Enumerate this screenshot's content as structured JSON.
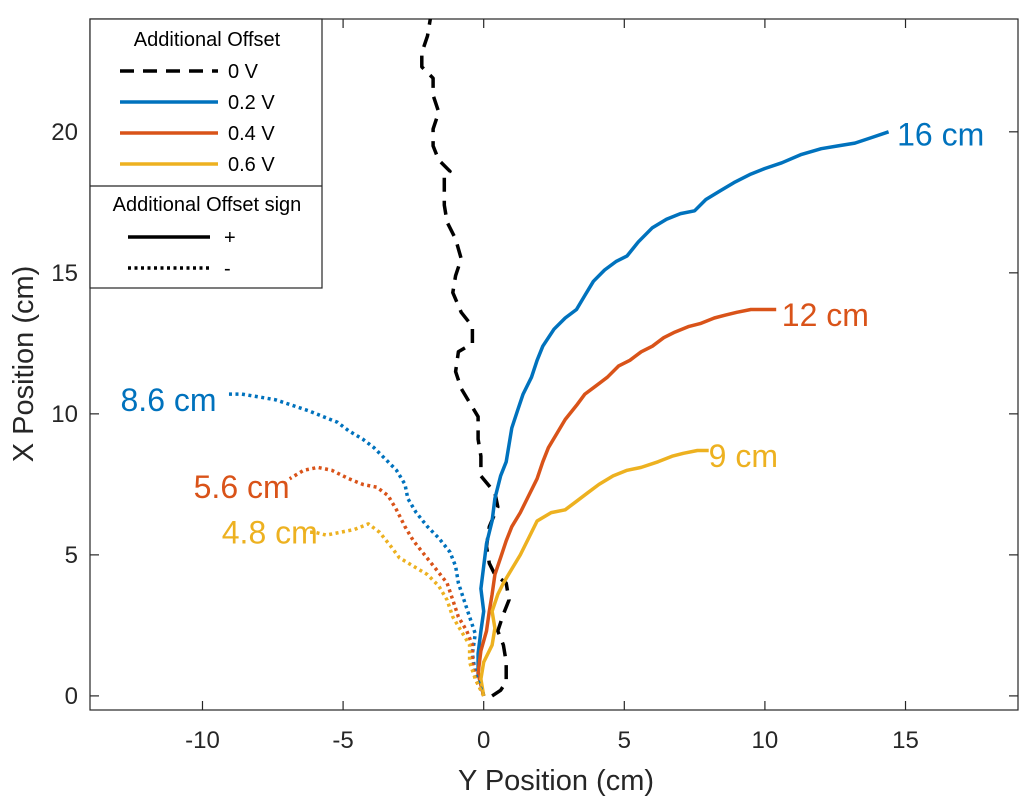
{
  "chart_data": {
    "type": "line",
    "xlabel": "Y Position (cm)",
    "ylabel": "X Position (cm)",
    "xlim": [
      -14,
      19
    ],
    "ylim": [
      -0.5,
      24
    ],
    "xticks": [
      -10,
      -5,
      0,
      5,
      10,
      15
    ],
    "yticks": [
      0,
      5,
      10,
      15,
      20
    ],
    "grid": false,
    "colors": {
      "0 V": "#000000",
      "0.2 V": "#0072BD",
      "0.4 V": "#D95319",
      "0.6 V": "#EDB120"
    },
    "legend": {
      "position": "top-left",
      "title": "Additional Offset",
      "entries": [
        {
          "label": "0 V",
          "color": "#000000",
          "style": "dashed"
        },
        {
          "label": "0.2 V",
          "color": "#0072BD",
          "style": "solid"
        },
        {
          "label": "0.4 V",
          "color": "#D95319",
          "style": "solid"
        },
        {
          "label": "0.6 V",
          "color": "#EDB120",
          "style": "solid"
        }
      ],
      "sign_title": "Additional Offset sign",
      "sign_entries": [
        {
          "label": "+",
          "style": "solid"
        },
        {
          "label": "-",
          "style": "dotted"
        }
      ]
    },
    "annotations": [
      {
        "text": "16 cm",
        "x": 14.7,
        "y": 19.9,
        "color": "#0072BD",
        "align": "start"
      },
      {
        "text": "12 cm",
        "x": 10.6,
        "y": 13.5,
        "color": "#D95319",
        "align": "start"
      },
      {
        "text": "9 cm",
        "x": 8.0,
        "y": 8.5,
        "color": "#EDB120",
        "align": "start"
      },
      {
        "text": "8.6 cm",
        "x": -9.5,
        "y": 10.5,
        "color": "#0072BD",
        "align": "end"
      },
      {
        "text": "5.6 cm",
        "x": -6.9,
        "y": 7.4,
        "color": "#D95319",
        "align": "end"
      },
      {
        "text": "4.8 cm",
        "x": -5.9,
        "y": 5.8,
        "color": "#EDB120",
        "align": "end"
      }
    ],
    "series": [
      {
        "legend": "0 V",
        "sign": "none",
        "style": "dashed",
        "color": "#000000",
        "points": [
          [
            0.3,
            0.0
          ],
          [
            0.6,
            0.2
          ],
          [
            0.8,
            0.5
          ],
          [
            0.8,
            1.2
          ],
          [
            0.7,
            1.8
          ],
          [
            0.5,
            2.3
          ],
          [
            0.7,
            2.9
          ],
          [
            0.9,
            3.4
          ],
          [
            0.8,
            4.0
          ],
          [
            0.4,
            4.3
          ],
          [
            0.2,
            4.7
          ],
          [
            0.1,
            5.3
          ],
          [
            0.2,
            6.0
          ],
          [
            0.5,
            6.7
          ],
          [
            0.4,
            7.2
          ],
          [
            -0.1,
            7.8
          ],
          [
            -0.1,
            8.5
          ],
          [
            -0.2,
            9.1
          ],
          [
            -0.2,
            9.9
          ],
          [
            -0.5,
            10.4
          ],
          [
            -0.8,
            10.9
          ],
          [
            -1.0,
            11.5
          ],
          [
            -0.9,
            12.2
          ],
          [
            -0.4,
            12.5
          ],
          [
            -0.4,
            13.1
          ],
          [
            -0.8,
            13.6
          ],
          [
            -1.1,
            14.3
          ],
          [
            -1.0,
            14.9
          ],
          [
            -0.8,
            15.5
          ],
          [
            -1.0,
            16.2
          ],
          [
            -1.3,
            16.8
          ],
          [
            -1.4,
            17.4
          ],
          [
            -1.4,
            18.0
          ],
          [
            -1.4,
            18.5
          ],
          [
            -1.2,
            18.6
          ],
          [
            -1.6,
            19.0
          ],
          [
            -1.8,
            19.5
          ],
          [
            -1.8,
            20.1
          ],
          [
            -1.6,
            20.7
          ],
          [
            -1.8,
            21.3
          ],
          [
            -1.8,
            21.9
          ],
          [
            -2.2,
            22.3
          ],
          [
            -2.2,
            22.8
          ],
          [
            -2.0,
            23.4
          ],
          [
            -1.9,
            24.0
          ]
        ]
      },
      {
        "legend": "0.2 V",
        "sign": "+",
        "style": "solid",
        "color": "#0072BD",
        "points": [
          [
            0.0,
            0.0
          ],
          [
            -0.2,
            0.8
          ],
          [
            -0.2,
            1.5
          ],
          [
            -0.1,
            2.3
          ],
          [
            0.0,
            3.0
          ],
          [
            -0.1,
            3.8
          ],
          [
            0.0,
            4.6
          ],
          [
            0.1,
            5.4
          ],
          [
            0.3,
            6.2
          ],
          [
            0.4,
            7.0
          ],
          [
            0.6,
            7.8
          ],
          [
            0.8,
            8.3
          ],
          [
            0.9,
            8.9
          ],
          [
            1.0,
            9.5
          ],
          [
            1.2,
            10.1
          ],
          [
            1.4,
            10.7
          ],
          [
            1.7,
            11.3
          ],
          [
            1.9,
            11.9
          ],
          [
            2.1,
            12.4
          ],
          [
            2.5,
            13.0
          ],
          [
            2.9,
            13.4
          ],
          [
            3.3,
            13.7
          ],
          [
            3.6,
            14.2
          ],
          [
            3.9,
            14.7
          ],
          [
            4.3,
            15.1
          ],
          [
            4.7,
            15.4
          ],
          [
            5.1,
            15.6
          ],
          [
            5.5,
            16.1
          ],
          [
            6.0,
            16.6
          ],
          [
            6.5,
            16.9
          ],
          [
            7.0,
            17.1
          ],
          [
            7.5,
            17.2
          ],
          [
            7.9,
            17.6
          ],
          [
            8.4,
            17.9
          ],
          [
            8.9,
            18.2
          ],
          [
            9.5,
            18.5
          ],
          [
            10.0,
            18.7
          ],
          [
            10.6,
            18.9
          ],
          [
            11.3,
            19.2
          ],
          [
            12.0,
            19.4
          ],
          [
            12.6,
            19.5
          ],
          [
            13.2,
            19.6
          ],
          [
            13.8,
            19.8
          ],
          [
            14.4,
            20.0
          ]
        ]
      },
      {
        "legend": "0.4 V",
        "sign": "+",
        "style": "solid",
        "color": "#D95319",
        "points": [
          [
            0.0,
            0.0
          ],
          [
            -0.2,
            0.8
          ],
          [
            -0.1,
            1.6
          ],
          [
            0.1,
            2.3
          ],
          [
            0.2,
            3.0
          ],
          [
            0.3,
            3.6
          ],
          [
            0.4,
            4.3
          ],
          [
            0.6,
            4.9
          ],
          [
            0.8,
            5.5
          ],
          [
            1.0,
            6.0
          ],
          [
            1.3,
            6.5
          ],
          [
            1.6,
            7.1
          ],
          [
            1.9,
            7.7
          ],
          [
            2.1,
            8.3
          ],
          [
            2.3,
            8.8
          ],
          [
            2.6,
            9.3
          ],
          [
            2.9,
            9.8
          ],
          [
            3.3,
            10.3
          ],
          [
            3.6,
            10.7
          ],
          [
            4.0,
            11.0
          ],
          [
            4.4,
            11.3
          ],
          [
            4.8,
            11.7
          ],
          [
            5.2,
            11.9
          ],
          [
            5.6,
            12.2
          ],
          [
            6.0,
            12.4
          ],
          [
            6.4,
            12.7
          ],
          [
            6.8,
            12.9
          ],
          [
            7.3,
            13.1
          ],
          [
            7.7,
            13.2
          ],
          [
            8.2,
            13.4
          ],
          [
            8.6,
            13.5
          ],
          [
            9.0,
            13.6
          ],
          [
            9.5,
            13.7
          ],
          [
            10.0,
            13.7
          ],
          [
            10.4,
            13.7
          ]
        ]
      },
      {
        "legend": "0.6 V",
        "sign": "+",
        "style": "solid",
        "color": "#EDB120",
        "points": [
          [
            0.0,
            0.0
          ],
          [
            -0.1,
            0.6
          ],
          [
            0.0,
            1.2
          ],
          [
            0.3,
            1.8
          ],
          [
            0.4,
            2.4
          ],
          [
            0.3,
            3.0
          ],
          [
            0.5,
            3.6
          ],
          [
            0.7,
            4.0
          ],
          [
            1.0,
            4.5
          ],
          [
            1.3,
            5.0
          ],
          [
            1.6,
            5.6
          ],
          [
            1.9,
            6.2
          ],
          [
            2.4,
            6.5
          ],
          [
            2.9,
            6.6
          ],
          [
            3.3,
            6.9
          ],
          [
            3.7,
            7.2
          ],
          [
            4.1,
            7.5
          ],
          [
            4.6,
            7.8
          ],
          [
            5.1,
            8.0
          ],
          [
            5.6,
            8.1
          ],
          [
            6.2,
            8.3
          ],
          [
            6.7,
            8.5
          ],
          [
            7.1,
            8.6
          ],
          [
            7.6,
            8.7
          ],
          [
            8.0,
            8.7
          ]
        ]
      },
      {
        "legend": "0.2 V",
        "sign": "-",
        "style": "dotted",
        "color": "#0072BD",
        "points": [
          [
            0.0,
            0.0
          ],
          [
            -0.3,
            0.8
          ],
          [
            -0.4,
            1.5
          ],
          [
            -0.3,
            2.2
          ],
          [
            -0.5,
            2.8
          ],
          [
            -0.7,
            3.4
          ],
          [
            -0.9,
            4.0
          ],
          [
            -1.0,
            4.6
          ],
          [
            -1.2,
            5.1
          ],
          [
            -1.6,
            5.6
          ],
          [
            -2.0,
            6.0
          ],
          [
            -2.4,
            6.5
          ],
          [
            -2.7,
            7.0
          ],
          [
            -2.8,
            7.5
          ],
          [
            -3.1,
            8.0
          ],
          [
            -3.5,
            8.4
          ],
          [
            -3.9,
            8.8
          ],
          [
            -4.3,
            9.1
          ],
          [
            -4.8,
            9.4
          ],
          [
            -5.2,
            9.7
          ],
          [
            -5.7,
            9.9
          ],
          [
            -6.2,
            10.1
          ],
          [
            -6.8,
            10.3
          ],
          [
            -7.4,
            10.5
          ],
          [
            -8.0,
            10.6
          ],
          [
            -8.6,
            10.7
          ],
          [
            -9.1,
            10.7
          ]
        ]
      },
      {
        "legend": "0.4 V",
        "sign": "-",
        "style": "dotted",
        "color": "#D95319",
        "points": [
          [
            0.0,
            0.0
          ],
          [
            -0.3,
            0.6
          ],
          [
            -0.4,
            1.2
          ],
          [
            -0.4,
            1.8
          ],
          [
            -0.6,
            2.3
          ],
          [
            -0.9,
            2.8
          ],
          [
            -1.1,
            3.4
          ],
          [
            -1.3,
            4.0
          ],
          [
            -1.7,
            4.5
          ],
          [
            -2.1,
            5.0
          ],
          [
            -2.5,
            5.5
          ],
          [
            -2.8,
            6.0
          ],
          [
            -3.1,
            6.6
          ],
          [
            -3.4,
            7.1
          ],
          [
            -3.8,
            7.4
          ],
          [
            -4.3,
            7.5
          ],
          [
            -4.8,
            7.7
          ],
          [
            -5.4,
            8.0
          ],
          [
            -5.9,
            8.1
          ],
          [
            -6.4,
            8.0
          ],
          [
            -6.9,
            7.7
          ]
        ]
      },
      {
        "legend": "0.6 V",
        "sign": "-",
        "style": "dotted",
        "color": "#EDB120",
        "points": [
          [
            0.0,
            0.0
          ],
          [
            -0.3,
            0.6
          ],
          [
            -0.5,
            1.2
          ],
          [
            -0.5,
            1.8
          ],
          [
            -0.8,
            2.3
          ],
          [
            -1.1,
            2.8
          ],
          [
            -1.3,
            3.4
          ],
          [
            -1.6,
            3.9
          ],
          [
            -2.0,
            4.3
          ],
          [
            -2.5,
            4.6
          ],
          [
            -3.0,
            4.9
          ],
          [
            -3.3,
            5.3
          ],
          [
            -3.7,
            5.8
          ],
          [
            -4.1,
            6.1
          ],
          [
            -4.6,
            5.9
          ],
          [
            -5.1,
            5.8
          ],
          [
            -5.6,
            5.7
          ],
          [
            -6.0,
            5.8
          ],
          [
            -6.3,
            5.8
          ]
        ]
      }
    ]
  }
}
